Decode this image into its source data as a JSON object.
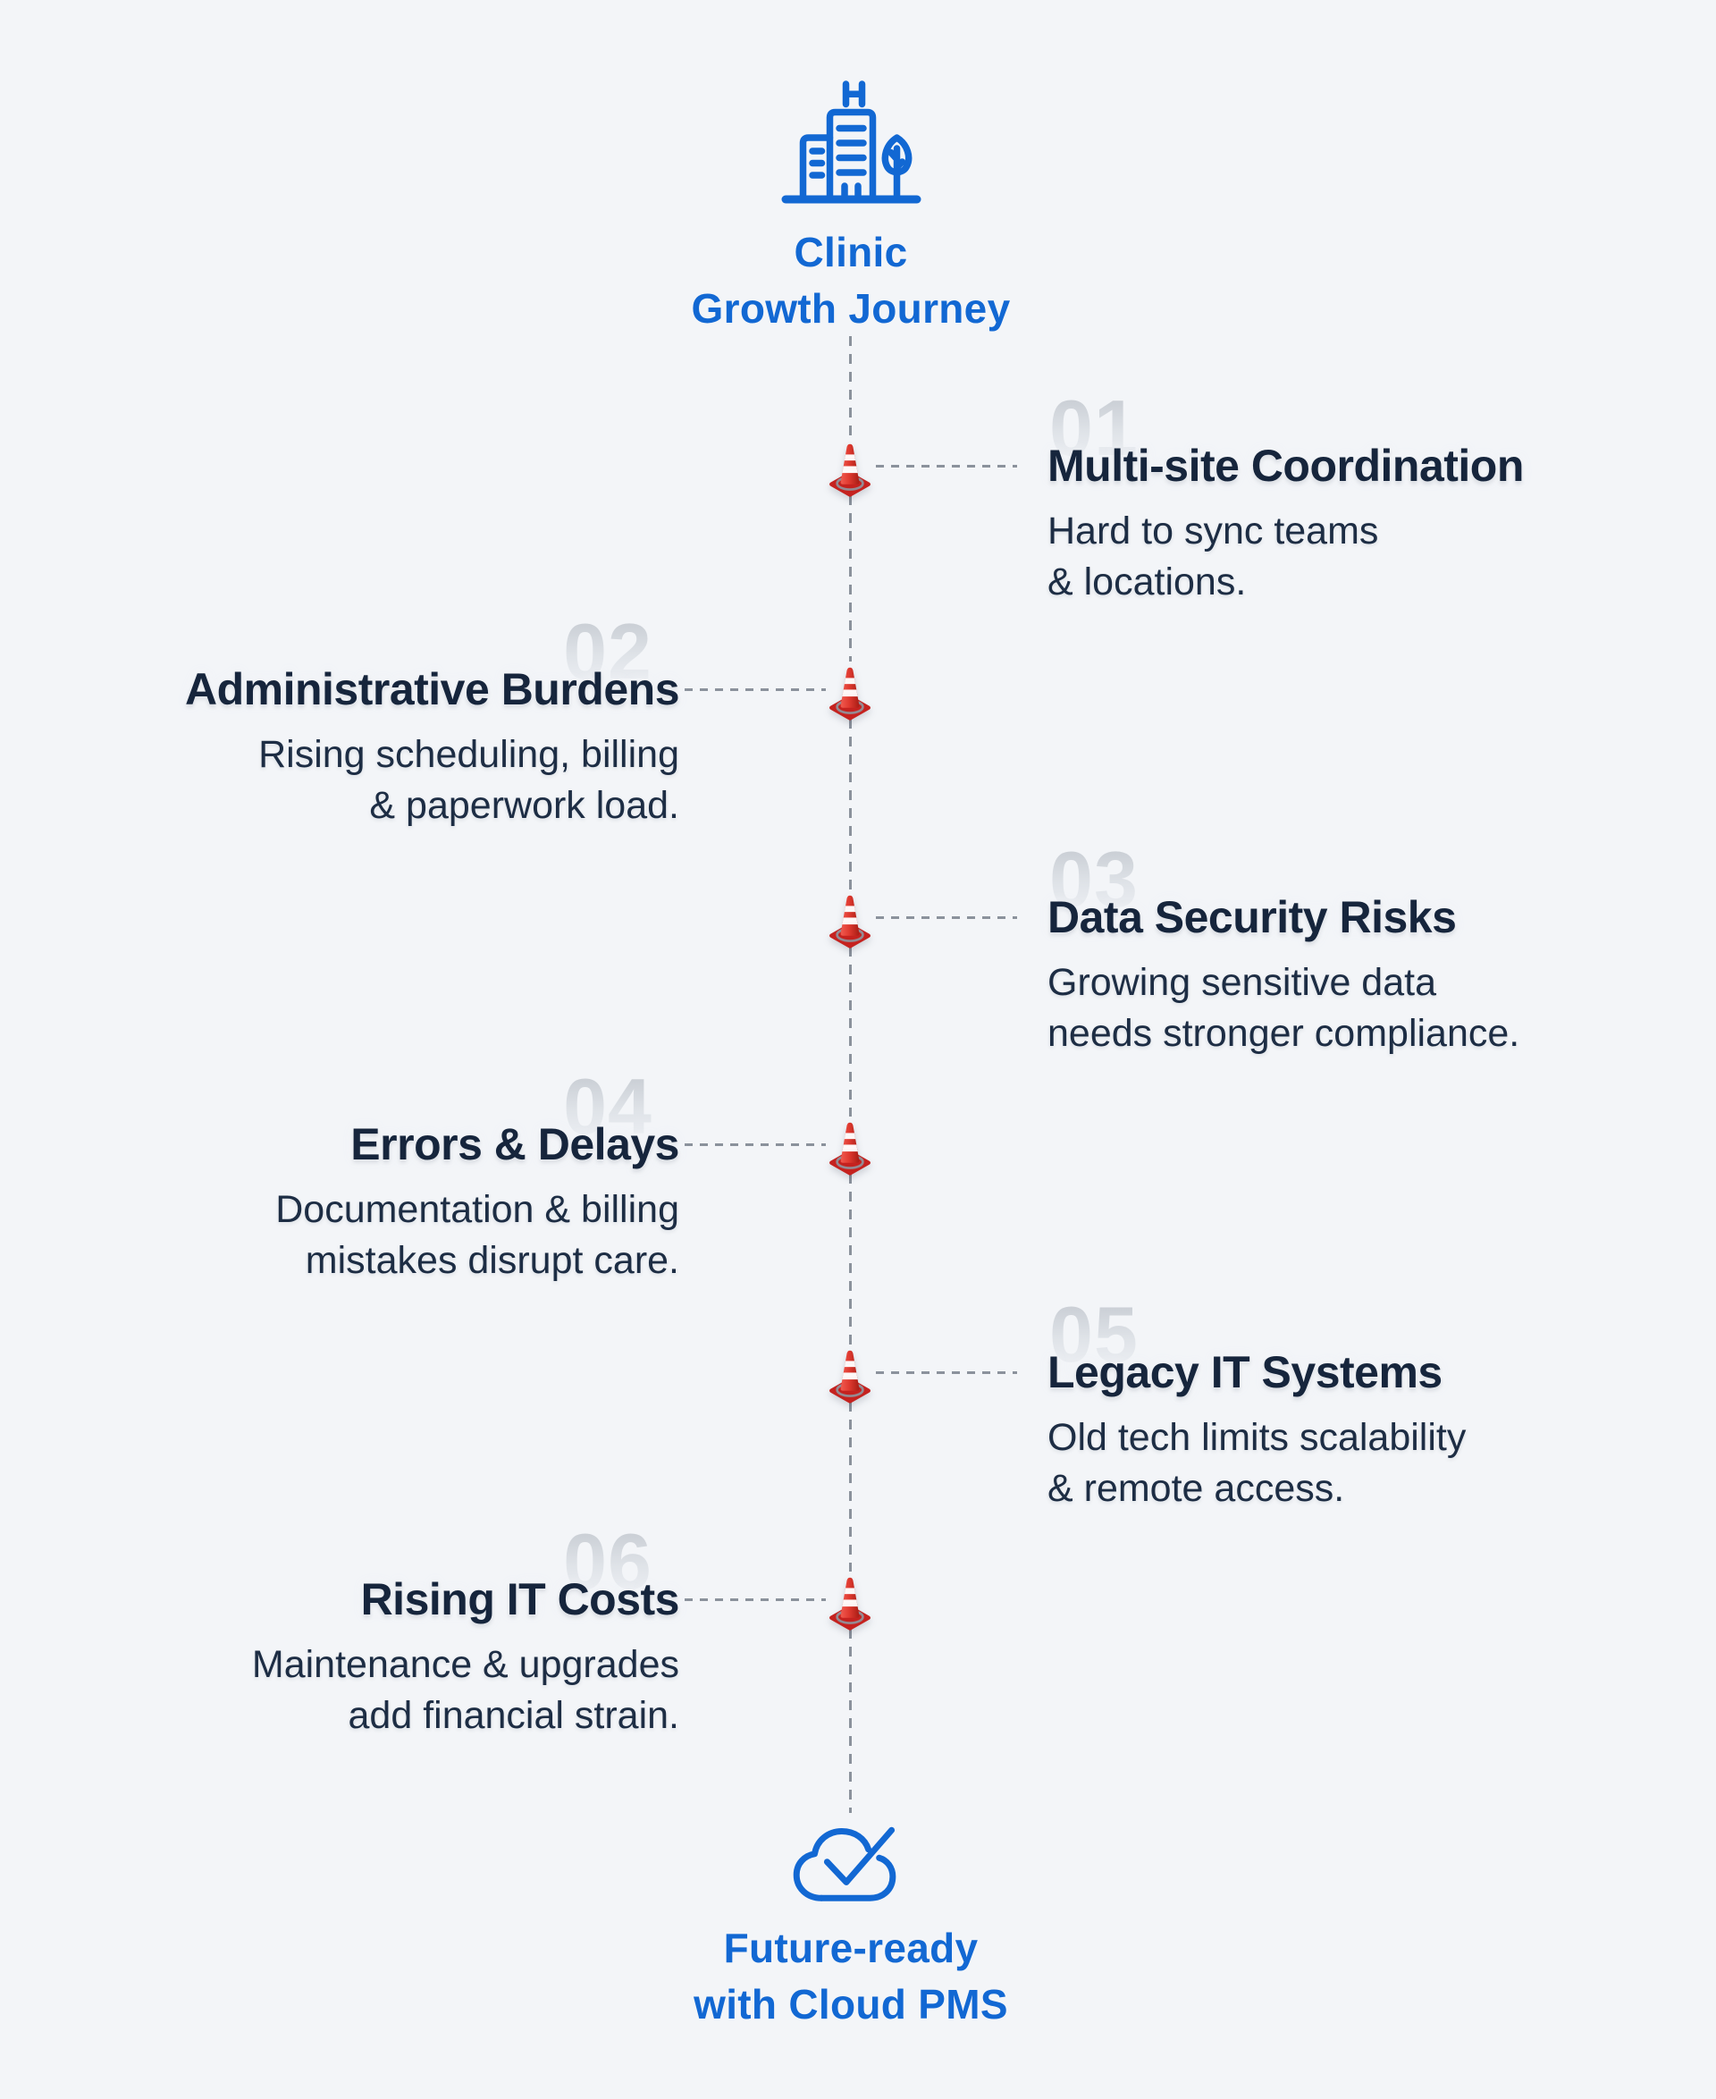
{
  "header": {
    "line1": "Clinic",
    "line2": "Growth Journey",
    "icon": "clinic-building-icon"
  },
  "footer": {
    "line1": "Future-ready",
    "line2": "with Cloud PMS",
    "icon": "cloud-check-icon"
  },
  "milestones": [
    {
      "number": "01",
      "side": "right",
      "title": "Multi-site Coordination",
      "desc_lines": [
        "Hard to sync teams",
        "& locations."
      ]
    },
    {
      "number": "02",
      "side": "left",
      "title": "Administrative Burdens",
      "desc_lines": [
        "Rising scheduling, billing",
        "& paperwork load."
      ]
    },
    {
      "number": "03",
      "side": "right",
      "title": "Data Security Risks",
      "desc_lines": [
        "Growing sensitive data",
        "needs stronger compliance."
      ]
    },
    {
      "number": "04",
      "side": "left",
      "title": "Errors & Delays",
      "desc_lines": [
        "Documentation & billing",
        "mistakes disrupt care."
      ]
    },
    {
      "number": "05",
      "side": "right",
      "title": "Legacy IT Systems",
      "desc_lines": [
        "Old tech limits scalability",
        "& remote access."
      ]
    },
    {
      "number": "06",
      "side": "left",
      "title": "Rising IT Costs",
      "desc_lines": [
        "Maintenance & upgrades",
        "add financial strain."
      ]
    }
  ],
  "icons": {
    "header": "clinic-building-icon",
    "footer": "cloud-check-icon",
    "milestone_marker": "traffic-cone-icon"
  },
  "colors": {
    "background": "#f3f5f8",
    "accent_blue": "#1268d3",
    "title_navy": "#16253c",
    "description_navy": "#1d2d44",
    "ghost_number_gray": "#c3c8cf",
    "dash_gray": "#8b929c",
    "cone_red": "#d93025",
    "cone_base_red": "#c5221f"
  }
}
